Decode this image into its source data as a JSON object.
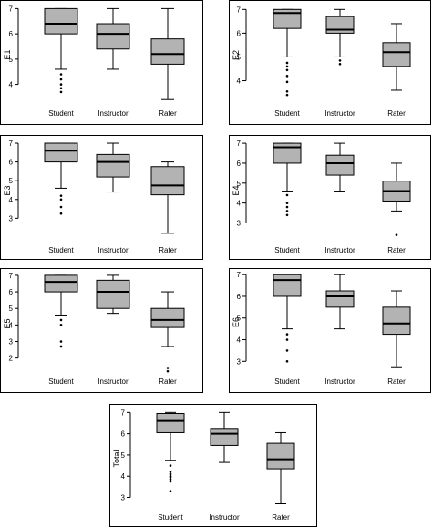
{
  "chart_data": [
    {
      "type": "boxplot",
      "ylabel": "E1",
      "ylim": [
        3.3,
        7.05
      ],
      "yticks": [
        4,
        5,
        6,
        7
      ],
      "categories": [
        "Student",
        "Instructor",
        "Rater"
      ],
      "boxes": [
        {
          "whisker_low": 4.6,
          "q1": 6.0,
          "median": 6.4,
          "q3": 7.0,
          "whisker_high": 7.0,
          "outliers": [
            4.4,
            4.2,
            4.0,
            3.85,
            3.7
          ]
        },
        {
          "whisker_low": 4.6,
          "q1": 5.4,
          "median": 6.0,
          "q3": 6.4,
          "whisker_high": 7.0,
          "outliers": []
        },
        {
          "whisker_low": 3.4,
          "q1": 4.8,
          "median": 5.2,
          "q3": 5.8,
          "whisker_high": 7.0,
          "outliers": []
        }
      ]
    },
    {
      "type": "boxplot",
      "ylabel": "E2",
      "ylim": [
        3.1,
        7.05
      ],
      "yticks": [
        4,
        5,
        6,
        7
      ],
      "categories": [
        "Student",
        "Instructor",
        "Rater"
      ],
      "boxes": [
        {
          "whisker_low": 5.0,
          "q1": 6.2,
          "median": 6.85,
          "q3": 7.0,
          "whisker_high": 7.0,
          "outliers": [
            4.75,
            4.6,
            4.45,
            4.2,
            3.95,
            3.55,
            3.4
          ]
        },
        {
          "whisker_low": 5.0,
          "q1": 6.0,
          "median": 6.15,
          "q3": 6.7,
          "whisker_high": 7.0,
          "outliers": [
            4.85,
            4.7
          ]
        },
        {
          "whisker_low": 3.6,
          "q1": 4.6,
          "median": 5.2,
          "q3": 5.6,
          "whisker_high": 6.4,
          "outliers": []
        }
      ]
    },
    {
      "type": "boxplot",
      "ylabel": "E3",
      "ylim": [
        1.9,
        7.05
      ],
      "yticks": [
        3,
        4,
        5,
        6,
        7
      ],
      "categories": [
        "Student",
        "Instructor",
        "Rater"
      ],
      "boxes": [
        {
          "whisker_low": 4.6,
          "q1": 6.0,
          "median": 6.6,
          "q3": 7.0,
          "whisker_high": 7.0,
          "outliers": [
            4.2,
            4.0,
            3.6,
            3.25
          ]
        },
        {
          "whisker_low": 4.4,
          "q1": 5.2,
          "median": 6.0,
          "q3": 6.4,
          "whisker_high": 7.0,
          "outliers": []
        },
        {
          "whisker_low": 2.2,
          "q1": 4.25,
          "median": 4.75,
          "q3": 5.75,
          "whisker_high": 6.0,
          "outliers": []
        }
      ]
    },
    {
      "type": "boxplot",
      "ylabel": "E4",
      "ylim": [
        2.2,
        7.05
      ],
      "yticks": [
        3,
        4,
        5,
        6,
        7
      ],
      "categories": [
        "Student",
        "Instructor",
        "Rater"
      ],
      "boxes": [
        {
          "whisker_low": 4.6,
          "q1": 6.0,
          "median": 6.8,
          "q3": 7.0,
          "whisker_high": 7.0,
          "outliers": [
            4.4,
            4.0,
            3.8,
            3.6,
            3.4
          ]
        },
        {
          "whisker_low": 4.6,
          "q1": 5.4,
          "median": 6.0,
          "q3": 6.4,
          "whisker_high": 7.0,
          "outliers": []
        },
        {
          "whisker_low": 3.6,
          "q1": 4.1,
          "median": 4.6,
          "q3": 5.1,
          "whisker_high": 6.0,
          "outliers": [
            2.4
          ]
        }
      ]
    },
    {
      "type": "boxplot",
      "ylabel": "E5",
      "ylim": [
        1.1,
        7.05
      ],
      "yticks": [
        2,
        3,
        4,
        5,
        6,
        7
      ],
      "categories": [
        "Student",
        "Instructor",
        "Rater"
      ],
      "boxes": [
        {
          "whisker_low": 4.6,
          "q1": 6.0,
          "median": 6.6,
          "q3": 7.0,
          "whisker_high": 7.0,
          "outliers": [
            4.3,
            4.0,
            3.0,
            2.7
          ]
        },
        {
          "whisker_low": 4.7,
          "q1": 5.0,
          "median": 6.0,
          "q3": 6.7,
          "whisker_high": 7.0,
          "outliers": []
        },
        {
          "whisker_low": 2.7,
          "q1": 3.85,
          "median": 4.3,
          "q3": 5.0,
          "whisker_high": 6.0,
          "outliers": [
            1.4,
            1.2
          ]
        }
      ]
    },
    {
      "type": "boxplot",
      "ylabel": "E6",
      "ylim": [
        2.55,
        7.05
      ],
      "yticks": [
        3,
        4,
        5,
        6,
        7
      ],
      "categories": [
        "Student",
        "Instructor",
        "Rater"
      ],
      "boxes": [
        {
          "whisker_low": 4.5,
          "q1": 6.0,
          "median": 6.75,
          "q3": 7.0,
          "whisker_high": 7.0,
          "outliers": [
            4.25,
            4.0,
            3.5,
            3.0
          ]
        },
        {
          "whisker_low": 4.5,
          "q1": 5.5,
          "median": 6.0,
          "q3": 6.25,
          "whisker_high": 7.0,
          "outliers": []
        },
        {
          "whisker_low": 2.75,
          "q1": 4.25,
          "median": 4.75,
          "q3": 5.5,
          "whisker_high": 6.25,
          "outliers": []
        }
      ]
    },
    {
      "type": "boxplot",
      "ylabel": "Total",
      "ylim": [
        2.55,
        7.1
      ],
      "yticks": [
        3,
        4,
        5,
        6,
        7
      ],
      "categories": [
        "Student",
        "Instructor",
        "Rater"
      ],
      "boxes": [
        {
          "whisker_low": 4.75,
          "q1": 6.05,
          "median": 6.6,
          "q3": 6.95,
          "whisker_high": 7.0,
          "outliers": [
            4.5,
            4.2,
            4.1,
            4.0,
            3.95,
            3.85,
            3.75,
            3.3
          ]
        },
        {
          "whisker_low": 4.65,
          "q1": 5.45,
          "median": 6.0,
          "q3": 6.25,
          "whisker_high": 7.0,
          "outliers": []
        },
        {
          "whisker_low": 2.7,
          "q1": 4.35,
          "median": 4.8,
          "q3": 5.55,
          "whisker_high": 6.05,
          "outliers": []
        }
      ]
    }
  ],
  "colors": {
    "box_fill": "#b3b3b3",
    "stroke": "#000000",
    "background": "#ffffff"
  }
}
